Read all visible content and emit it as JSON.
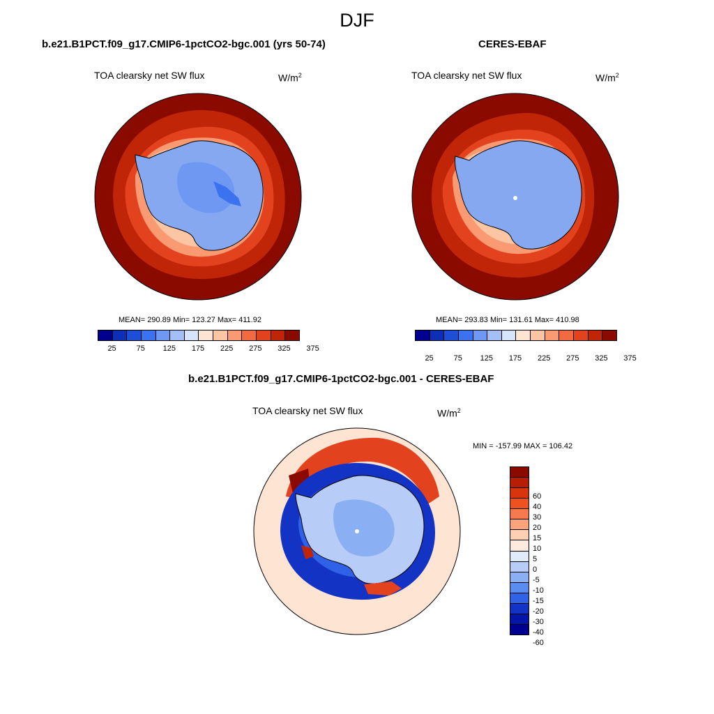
{
  "title": "DJF",
  "panels": {
    "model": {
      "title": "b.e21.B1PCT.f09_g17.CMIP6-1pctCO2-bgc.001 (yrs 50-74)",
      "variable": "TOA clearsky net SW flux",
      "unit_base": "W/m",
      "unit_exp": "2",
      "stats": "MEAN= 290.89  Min= 123.27  Max= 411.92"
    },
    "obs": {
      "title": "CERES-EBAF",
      "variable": "TOA clearsky net SW flux",
      "unit_base": "W/m",
      "unit_exp": "2",
      "stats": "MEAN= 293.83  Min= 131.61  Max= 410.98"
    },
    "diff": {
      "title": "b.e21.B1PCT.f09_g17.CMIP6-1pctCO2-bgc.001 - CERES-EBAF",
      "variable": "TOA clearsky net SW flux",
      "unit_base": "W/m",
      "unit_exp": "2",
      "stats": "MIN = -157.99 MAX = 106.42"
    }
  },
  "colorbar_abs": {
    "labels": [
      "25",
      "75",
      "125",
      "175",
      "225",
      "275",
      "325",
      "375"
    ],
    "colors": [
      "#00008f",
      "#0c2fb5",
      "#1c4fd6",
      "#3a72f0",
      "#6e98f2",
      "#a4bff5",
      "#d7e5fa",
      "#fde4d3",
      "#fcc5a4",
      "#f99a72",
      "#f26a42",
      "#e3421f",
      "#c02508",
      "#8b0a00"
    ]
  },
  "colorbar_diff": {
    "labels": [
      "60",
      "40",
      "30",
      "20",
      "15",
      "10",
      "5",
      "0",
      "-5",
      "-10",
      "-15",
      "-20",
      "-30",
      "-40",
      "-60"
    ],
    "colors": [
      "#8b0a00",
      "#b81e05",
      "#d8350f",
      "#f0521f",
      "#f77a4f",
      "#fba47c",
      "#fdd0b4",
      "#fdebdd",
      "#e1ecfb",
      "#b7cdf7",
      "#8aaff2",
      "#5b8cef",
      "#2f62e6",
      "#1233c4",
      "#0416a8",
      "#000090"
    ]
  }
}
